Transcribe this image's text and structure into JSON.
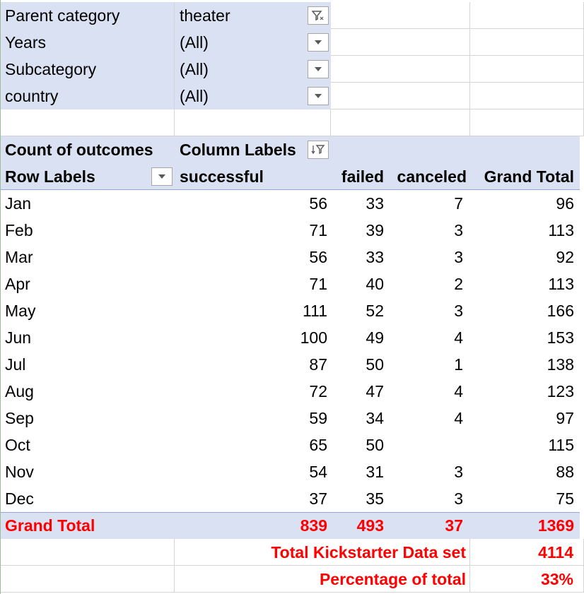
{
  "filters": [
    {
      "label": "Parent category",
      "value": "theater",
      "icon": "filter-icon"
    },
    {
      "label": "Years",
      "value": "(All)",
      "icon": "chevron-down-icon"
    },
    {
      "label": "Subcategory",
      "value": "(All)",
      "icon": "chevron-down-icon"
    },
    {
      "label": "country",
      "value": "(All)",
      "icon": "chevron-down-icon"
    }
  ],
  "pivot": {
    "measure_label": "Count of outcomes",
    "column_labels": "Column Labels",
    "row_labels": "Row Labels",
    "columns": [
      "successful",
      "failed",
      "canceled",
      "Grand Total"
    ],
    "rows": [
      {
        "label": "Jan",
        "values": [
          "56",
          "33",
          "7",
          "96"
        ]
      },
      {
        "label": "Feb",
        "values": [
          "71",
          "39",
          "3",
          "113"
        ]
      },
      {
        "label": "Mar",
        "values": [
          "56",
          "33",
          "3",
          "92"
        ]
      },
      {
        "label": "Apr",
        "values": [
          "71",
          "40",
          "2",
          "113"
        ]
      },
      {
        "label": "May",
        "values": [
          "111",
          "52",
          "3",
          "166"
        ]
      },
      {
        "label": "Jun",
        "values": [
          "100",
          "49",
          "4",
          "153"
        ]
      },
      {
        "label": "Jul",
        "values": [
          "87",
          "50",
          "1",
          "138"
        ]
      },
      {
        "label": "Aug",
        "values": [
          "72",
          "47",
          "4",
          "123"
        ]
      },
      {
        "label": "Sep",
        "values": [
          "59",
          "34",
          "4",
          "97"
        ]
      },
      {
        "label": "Oct",
        "values": [
          "65",
          "50",
          "",
          "115"
        ]
      },
      {
        "label": "Nov",
        "values": [
          "54",
          "31",
          "3",
          "88"
        ]
      },
      {
        "label": "Dec",
        "values": [
          "37",
          "35",
          "3",
          "75"
        ]
      }
    ],
    "grand_total": {
      "label": "Grand Total",
      "values": [
        "839",
        "493",
        "37",
        "1369"
      ]
    }
  },
  "summary": [
    {
      "label": "Total Kickstarter Data set",
      "value": "4114"
    },
    {
      "label": "Percentage of total",
      "value": "33%"
    }
  ],
  "colors": {
    "header_fill": "#d9e1f2",
    "total_text": "#ff0000",
    "gridline": "#d4d4d4"
  }
}
